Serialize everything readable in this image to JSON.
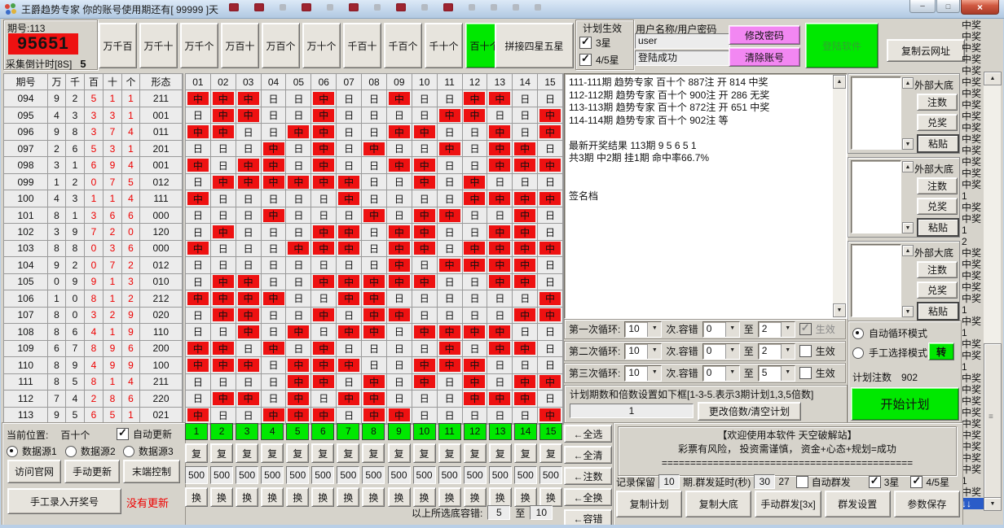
{
  "titlebar": {
    "title": "王爵趋势专家 你的账号使用期还有[ 99999 ]天",
    "minimize": "–",
    "maximize": "□",
    "close": "×",
    "squares": [
      "red",
      "red",
      "gray",
      "red",
      "gray",
      "red",
      "gray",
      "red",
      "gray",
      "red",
      "gray",
      "gray",
      "gray",
      "gray"
    ]
  },
  "top": {
    "issue_label": "期号:113",
    "number": "95651",
    "countdown_label": "采集倒计时[8S]",
    "countdown_value": "5",
    "position_buttons": [
      "万千百",
      "万千十",
      "万千个",
      "万百十",
      "万百个",
      "万十个",
      "千百十",
      "千百个",
      "千十个",
      "百十个"
    ],
    "active_position": "百十个",
    "splice": "拼接四星五星",
    "plan_effect": {
      "title": "计划生效",
      "opt1": "3星",
      "opt2": "4/5星"
    },
    "account": {
      "label": "用户名称/用户密码",
      "username": "user",
      "status": "登陆成功",
      "btn_change": "修改密码",
      "btn_clear": "清除账号",
      "btn_login": "登陆软件",
      "btn_copy_url": "复制云网址"
    }
  },
  "left_table": {
    "headers": [
      "期号",
      "万",
      "千",
      "百",
      "十",
      "个",
      "形态"
    ],
    "rows": [
      [
        "094",
        "9",
        "2",
        "5",
        "1",
        "1",
        "211"
      ],
      [
        "095",
        "4",
        "3",
        "3",
        "3",
        "1",
        "001"
      ],
      [
        "096",
        "9",
        "8",
        "3",
        "7",
        "4",
        "011"
      ],
      [
        "097",
        "2",
        "6",
        "5",
        "3",
        "1",
        "201"
      ],
      [
        "098",
        "3",
        "1",
        "6",
        "9",
        "4",
        "001"
      ],
      [
        "099",
        "1",
        "2",
        "0",
        "7",
        "5",
        "012"
      ],
      [
        "100",
        "4",
        "3",
        "1",
        "1",
        "4",
        "111"
      ],
      [
        "101",
        "8",
        "1",
        "3",
        "6",
        "6",
        "000"
      ],
      [
        "102",
        "3",
        "9",
        "7",
        "2",
        "0",
        "120"
      ],
      [
        "103",
        "8",
        "8",
        "0",
        "3",
        "6",
        "000"
      ],
      [
        "104",
        "9",
        "2",
        "0",
        "7",
        "2",
        "012"
      ],
      [
        "105",
        "0",
        "9",
        "9",
        "1",
        "3",
        "010"
      ],
      [
        "106",
        "1",
        "0",
        "8",
        "1",
        "2",
        "212"
      ],
      [
        "107",
        "8",
        "0",
        "3",
        "2",
        "9",
        "020"
      ],
      [
        "108",
        "8",
        "6",
        "4",
        "1",
        "9",
        "110"
      ],
      [
        "109",
        "6",
        "7",
        "8",
        "9",
        "6",
        "200"
      ],
      [
        "110",
        "8",
        "9",
        "4",
        "9",
        "9",
        "100"
      ],
      [
        "111",
        "8",
        "5",
        "8",
        "1",
        "4",
        "211"
      ],
      [
        "112",
        "7",
        "4",
        "2",
        "8",
        "6",
        "220"
      ],
      [
        "113",
        "9",
        "5",
        "6",
        "5",
        "1",
        "021"
      ]
    ]
  },
  "grid": {
    "columns": [
      "01",
      "02",
      "03",
      "04",
      "05",
      "06",
      "07",
      "08",
      "09",
      "10",
      "11",
      "12",
      "13",
      "14",
      "15"
    ],
    "hit_label": "中",
    "miss_label": "日",
    "rows": [
      "111001001001100",
      "011001000011001",
      "110011001100101",
      "000101010010110",
      "101101001100111",
      "011111100101000",
      "100000100001111",
      "000100010110010",
      "010001101100110",
      "100011101101111",
      "000000001011110",
      "011001111100110",
      "111100110000001",
      "011001011000011",
      "001010110111100",
      "110101000010110",
      "111011100111000",
      "000011010101011",
      "011010110001110",
      "100111011000001"
    ]
  },
  "results_box": {
    "lines": [
      "111-111期 趋势专家 百十个 887注 开 814 中奖",
      "112-112期 趋势专家 百十个 900注 开 286 无奖",
      "113-113期 趋势专家 百十个 872注 开 651 中奖",
      "114-114期 趋势专家 百十个 902注 等",
      "",
      "最新开奖结果 113期 9 5 6 5 1",
      "共3期 中2期 挂1期 命中率66.7%",
      "",
      "",
      "签名档"
    ]
  },
  "loops": [
    {
      "label": "第一次循环:",
      "times": "10",
      "unit": "次.容错",
      "from": "0",
      "to_word": "至",
      "to": "2",
      "effect": "生效",
      "checked": true,
      "enabled": false
    },
    {
      "label": "第二次循环:",
      "times": "10",
      "unit": "次.容错",
      "from": "0",
      "to_word": "至",
      "to": "2",
      "effect": "生效",
      "checked": false,
      "enabled": true
    },
    {
      "label": "第三次循环:",
      "times": "10",
      "unit": "次.容错",
      "from": "0",
      "to_word": "至",
      "to": "5",
      "effect": "生效",
      "checked": false,
      "enabled": true
    }
  ],
  "plan": {
    "note": "计划期数和倍数设置如下框[1-3-5.表示3期计划1,3,5倍数]",
    "value": "1",
    "button": "更改倍数/清空计划"
  },
  "outer_panels": [
    {
      "label": "外部大底",
      "btn_notes": "注数",
      "btn_redeem": "兑奖",
      "btn_paste": "粘贴"
    },
    {
      "label": "外部大底",
      "btn_notes": "注数",
      "btn_redeem": "兑奖",
      "btn_paste": "粘贴"
    },
    {
      "label": "外部大底",
      "btn_notes": "注数",
      "btn_redeem": "兑奖",
      "btn_paste": "粘贴"
    }
  ],
  "mode": {
    "auto": "自动循环模式",
    "manual": "手工选择模式",
    "transfer": "转",
    "plan_notes_label": "计划注数",
    "plan_notes_value": "902",
    "start": "开始计划"
  },
  "win_list": {
    "items": [
      "中奖",
      "中奖",
      "中奖",
      "中奖",
      "中奖",
      "中奖",
      "中奖",
      "中奖",
      "中奖",
      "中奖",
      "中奖",
      "中奖",
      "中奖",
      "中奖",
      "中奖",
      "1",
      "中奖",
      "中奖",
      "1",
      "2",
      "中奖",
      "中奖",
      "中奖",
      "中奖",
      "中奖",
      "1",
      "中奖",
      "1",
      "中奖",
      "中奖",
      "1",
      "中奖",
      "中奖",
      "中奖",
      "中奖",
      "中奖",
      "中奖",
      "中奖",
      "中奖",
      "中奖",
      "1",
      "中奖"
    ],
    "selected": "↓↓"
  },
  "bottom_left": {
    "pos_label": "当前位置:",
    "pos_value": "百十个",
    "auto_update": "自动更新",
    "src1": "数据源1",
    "src2": "数据源2",
    "src3": "数据源3",
    "btn_site": "访问官网",
    "btn_update": "手动更新",
    "btn_terminal": "末端控制",
    "btn_manual_entry": "手工录入开奖号",
    "no_update": "没有更新"
  },
  "bottom_grid": {
    "numbers": [
      "1",
      "2",
      "3",
      "4",
      "5",
      "6",
      "7",
      "8",
      "9",
      "10",
      "11",
      "12",
      "13",
      "14",
      "15"
    ],
    "dup_label": "复",
    "value": "500",
    "swap_label": "换",
    "tol_label": "以上所选底容错:",
    "tol_from": "5",
    "tol_mid": "至",
    "tol_to": "10"
  },
  "arrow_buttons": [
    "←全选",
    "←全清",
    "←注数",
    "←全换",
    "←容错"
  ],
  "bottom_right": {
    "welcome1": "【欢迎使用本软件 天空破解站】",
    "welcome2": "彩票有风险， 投资需谨慎， 资金+心态+规划=成功",
    "welcome3": "============================================",
    "keep_label": "记录保留",
    "keep_value": "10",
    "delay_label": "期.群发延时(秒)",
    "delay_value": "30",
    "counter": "27",
    "auto_send": "自动群发",
    "cb3": "3星",
    "cb45": "4/5星",
    "btn_copy_plan": "复制计划",
    "btn_copy_base": "复制大底",
    "btn_manual_send": "手动群发[3x]",
    "btn_send_settings": "群发设置",
    "btn_save_params": "参数保存"
  },
  "colors": {
    "accent_red": "#ee1111",
    "accent_green": "#00e800",
    "magenta": "#f287f2",
    "selection_blue": "#2a5cc8"
  }
}
